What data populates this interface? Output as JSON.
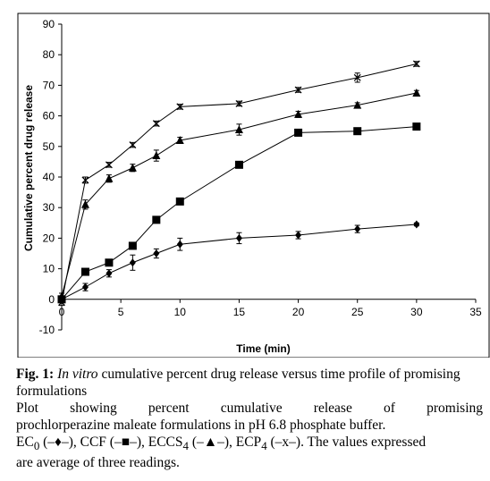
{
  "chart_data": {
    "type": "line",
    "xlabel": "Time (min)",
    "ylabel": "Cumulative percent drug release",
    "xlim": [
      0,
      35
    ],
    "ylim": [
      -10,
      90
    ],
    "xticks": [
      "0",
      "5",
      "10",
      "15",
      "20",
      "25",
      "30",
      "35"
    ],
    "yticks": [
      "-10",
      "0",
      "10",
      "20",
      "30",
      "40",
      "50",
      "60",
      "70",
      "80",
      "90"
    ],
    "grid": false,
    "series": [
      {
        "marker": "diamond",
        "x": [
          0,
          2,
          4,
          6,
          8,
          10,
          15,
          20,
          25,
          30
        ],
        "y": [
          0,
          4,
          8.5,
          12,
          15,
          18,
          20,
          21,
          23,
          24.5
        ],
        "err": [
          1,
          1.2,
          1.2,
          2.5,
          1.5,
          2,
          1.8,
          1.2,
          1.2,
          0.5
        ]
      },
      {
        "marker": "square",
        "x": [
          0,
          2,
          4,
          6,
          8,
          10,
          15,
          20,
          25,
          30
        ],
        "y": [
          0,
          9,
          12,
          17.5,
          26,
          32,
          44,
          54.5,
          55,
          56.5
        ],
        "err": [
          1,
          0.8,
          0.8,
          0.8,
          1,
          1,
          0.8,
          0.8,
          0.8,
          0.8
        ]
      },
      {
        "marker": "triangle",
        "x": [
          0,
          2,
          4,
          6,
          8,
          10,
          15,
          20,
          25,
          30
        ],
        "y": [
          1,
          31,
          39.5,
          43,
          47,
          52,
          55.5,
          60.5,
          63.5,
          67.5
        ],
        "err": [
          1,
          1.5,
          1.2,
          1.2,
          1.8,
          1,
          1.8,
          1,
          0.8,
          0.8
        ]
      },
      {
        "marker": "cross",
        "x": [
          0,
          2,
          4,
          6,
          8,
          10,
          15,
          20,
          25,
          30
        ],
        "y": [
          -1,
          39,
          44,
          50.5,
          57.5,
          63,
          64,
          68.5,
          72.5,
          77
        ],
        "err": [
          1,
          1,
          0.8,
          0.8,
          0.8,
          0.8,
          0.8,
          0.8,
          1.5,
          0.8
        ]
      }
    ]
  },
  "caption": {
    "fig_label": "Fig. 1:",
    "fig_italic": "In vitro",
    "fig_title": "cumulative percent drug release versus time profile of promising formulations",
    "line1": "Plot showing percent cumulative release of promising",
    "line2": "prochlorperazine maleate formulations in pH 6.8 phosphate buffer.",
    "ec_name": "EC",
    "ec_sub": "0",
    "ec_sym": "(–♦–), ",
    "ccf": "CCF (–■–), ",
    "eccs_name": "ECCS",
    "eccs_sub": "4",
    "eccs_sym": " (–▲–), ",
    "ecp_name": "ECP",
    "ecp_sub": "4",
    "ecp_sym": " (–x–). The values expressed",
    "line4": "are average of three readings."
  }
}
